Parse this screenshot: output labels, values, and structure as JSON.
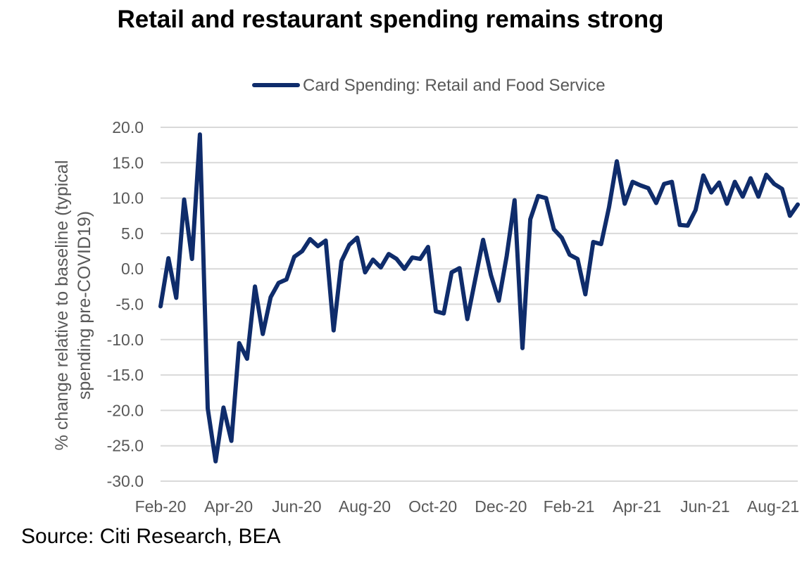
{
  "chart_data": {
    "type": "line",
    "title": "Retail and restaurant spending remains strong",
    "source": "Source: Citi Research, BEA",
    "ylabel_lines": [
      "% change relative to baseline (typical",
      "spending pre-COVID19)"
    ],
    "xlabel": "",
    "ylim": [
      -30,
      20
    ],
    "yticks": [
      20,
      15,
      10,
      5,
      0,
      -5,
      -10,
      -15,
      -20,
      -25,
      -30
    ],
    "ytick_labels": [
      "20.0",
      "15.0",
      "10.0",
      "5.0",
      "0.0",
      "-5.0",
      "-10.0",
      "-15.0",
      "-20.0",
      "-25.0",
      "-30.0"
    ],
    "xtick_labels": [
      "Feb-20",
      "Apr-20",
      "Jun-20",
      "Aug-20",
      "Oct-20",
      "Dec-20",
      "Feb-21",
      "Apr-21",
      "Jun-21",
      "Aug-21"
    ],
    "grid": true,
    "legend_position": "top",
    "series": [
      {
        "name": "Card Spending: Retail and Food Service",
        "color": "#0f2c6b",
        "values": [
          -5.3,
          1.5,
          -4.1,
          9.8,
          1.4,
          19.0,
          -19.7,
          -27.2,
          -19.6,
          -24.3,
          -10.5,
          -12.7,
          -2.5,
          -9.2,
          -4.0,
          -2.0,
          -1.5,
          1.7,
          2.5,
          4.2,
          3.2,
          4.0,
          -8.7,
          1.1,
          3.4,
          4.4,
          -0.5,
          1.3,
          0.2,
          2.1,
          1.4,
          0.0,
          1.6,
          1.4,
          3.1,
          -6.0,
          -6.3,
          -0.5,
          0.1,
          -7.1,
          -1.5,
          4.1,
          -0.9,
          -4.5,
          1.8,
          9.7,
          -11.2,
          7.0,
          10.3,
          10.0,
          5.6,
          4.4,
          2.0,
          1.4,
          -3.6,
          3.8,
          3.5,
          8.7,
          15.2,
          9.2,
          12.3,
          11.8,
          11.4,
          9.3,
          12.0,
          12.3,
          6.2,
          6.1,
          8.3,
          13.2,
          10.8,
          12.2,
          9.2,
          12.3,
          10.2,
          12.8,
          10.2,
          13.3,
          12.0,
          11.3,
          7.5,
          9.1
        ]
      }
    ]
  }
}
